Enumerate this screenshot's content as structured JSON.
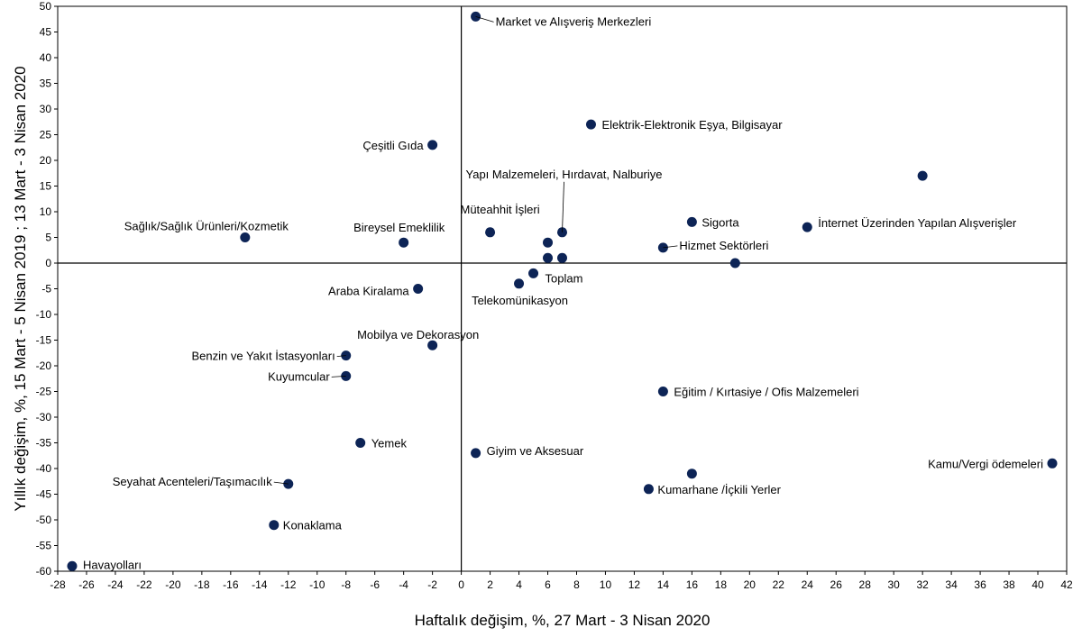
{
  "chart_data": {
    "type": "scatter",
    "xlabel": "Haftalık değişim, %, 27 Mart - 3 Nisan 2020",
    "ylabel": "Yıllık değişim, %, 15 Mart - 5 Nisan 2019 ; 13 Mart - 3 Nisan 2020",
    "xlim": [
      -28,
      42
    ],
    "ylim": [
      -60,
      50
    ],
    "x_ticks": [
      -28,
      -26,
      -24,
      -22,
      -20,
      -18,
      -16,
      -14,
      -12,
      -10,
      -8,
      -6,
      -4,
      -2,
      0,
      2,
      4,
      6,
      8,
      10,
      12,
      14,
      16,
      18,
      20,
      22,
      24,
      26,
      28,
      30,
      32,
      34,
      36,
      38,
      40,
      42
    ],
    "y_ticks": [
      -60,
      -55,
      -50,
      -45,
      -40,
      -35,
      -30,
      -25,
      -20,
      -15,
      -10,
      -5,
      0,
      5,
      10,
      15,
      20,
      25,
      30,
      35,
      40,
      45,
      50
    ],
    "marker_color": "#0d2456",
    "points": [
      {
        "label": "Market ve Alışveriş Merkezleri",
        "x": 1,
        "y": 48
      },
      {
        "label": "Elektrik-Elektronik Eşya, Bilgisayar",
        "x": 9,
        "y": 27
      },
      {
        "label": "Çeşitli Gıda",
        "x": -2,
        "y": 23
      },
      {
        "label": "",
        "x": 32,
        "y": 17
      },
      {
        "label": "Yapı Malzemeleri, Hırdavat, Nalburiye",
        "x": 7,
        "y": 6
      },
      {
        "label": "Müteahhit İşleri",
        "x": 2,
        "y": 6
      },
      {
        "label": "Sigorta",
        "x": 16,
        "y": 8
      },
      {
        "label": "İnternet Üzerinden Yapılan Alışverişler",
        "x": 24,
        "y": 7
      },
      {
        "label": "Sağlık/Sağlık Ürünleri/Kozmetik",
        "x": -15,
        "y": 5
      },
      {
        "label": "Bireysel Emeklilik",
        "x": -4,
        "y": 4
      },
      {
        "label": "",
        "x": 6,
        "y": 4
      },
      {
        "label": "Hizmet Sektörleri",
        "x": 14,
        "y": 3
      },
      {
        "label": "",
        "x": 6,
        "y": 1
      },
      {
        "label": "",
        "x": 7,
        "y": 1
      },
      {
        "label": "",
        "x": 19,
        "y": 0
      },
      {
        "label": "Toplam",
        "x": 5,
        "y": -2
      },
      {
        "label": "Telekomünikasyon",
        "x": 4,
        "y": -4
      },
      {
        "label": "Araba Kiralama",
        "x": -3,
        "y": -5
      },
      {
        "label": "Mobilya ve Dekorasyon",
        "x": -2,
        "y": -16
      },
      {
        "label": "Benzin ve Yakıt İstasyonları",
        "x": -8,
        "y": -18
      },
      {
        "label": "Kuyumcular",
        "x": -8,
        "y": -22
      },
      {
        "label": "Eğitim / Kırtasiye / Ofis Malzemeleri",
        "x": 14,
        "y": -25
      },
      {
        "label": "Yemek",
        "x": -7,
        "y": -35
      },
      {
        "label": "Giyim ve Aksesuar",
        "x": 1,
        "y": -37
      },
      {
        "label": "Kamu/Vergi ödemeleri",
        "x": 41,
        "y": -39
      },
      {
        "label": "Kumarhane /İçkili Yerler",
        "x": 13,
        "y": -44
      },
      {
        "label": "",
        "x": 16,
        "y": -41
      },
      {
        "label": "Seyahat Acenteleri/Taşımacılık",
        "x": -12,
        "y": -43
      },
      {
        "label": "Konaklama",
        "x": -13,
        "y": -51
      },
      {
        "label": "Havayolları",
        "x": -27,
        "y": -59
      }
    ]
  }
}
